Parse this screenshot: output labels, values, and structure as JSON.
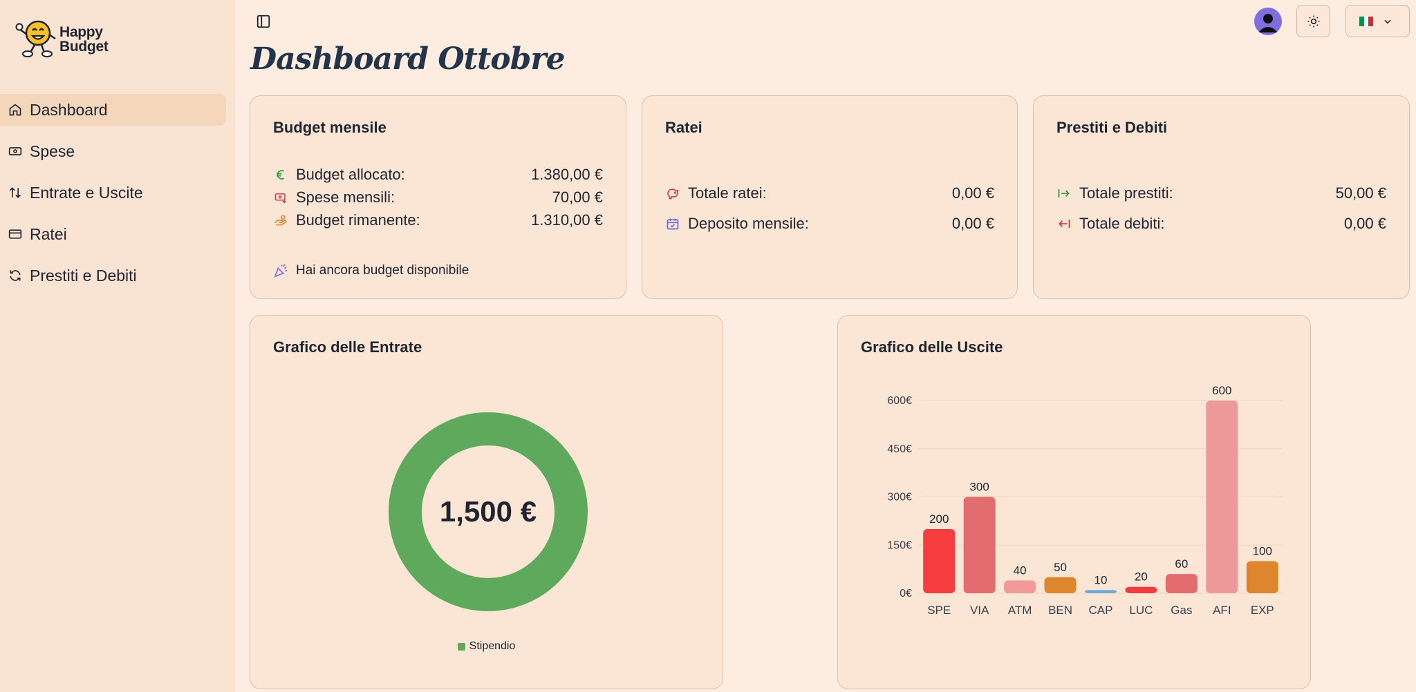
{
  "app": {
    "logo_line1": "Happy",
    "logo_line2": "Budget"
  },
  "sidebar": {
    "items": [
      {
        "label": "Dashboard",
        "icon": "home-icon",
        "active": true
      },
      {
        "label": "Spese",
        "icon": "banknote-icon"
      },
      {
        "label": "Entrate e Uscite",
        "icon": "arrows-up-down-icon"
      },
      {
        "label": "Ratei",
        "icon": "credit-card-icon"
      },
      {
        "label": "Prestiti e Debiti",
        "icon": "refresh-icon"
      }
    ]
  },
  "header": {
    "title": "Dashboard Ottobre",
    "language": "it",
    "flag_colors": [
      "#009246",
      "#ffffff",
      "#ce2b37"
    ]
  },
  "budget": {
    "title": "Budget mensile",
    "allocated_label": "Budget allocato:",
    "allocated_value": "1.380,00 €",
    "spent_label": "Spese mensili:",
    "spent_value": "70,00 €",
    "remaining_label": "Budget rimanente:",
    "remaining_value": "1.310,00 €",
    "note": "Hai ancora budget disponibile"
  },
  "ratei": {
    "title": "Ratei",
    "total_label": "Totale ratei:",
    "total_value": "0,00 €",
    "deposit_label": "Deposito mensile:",
    "deposit_value": "0,00 €"
  },
  "loans": {
    "title": "Prestiti e Debiti",
    "loans_label": "Totale prestiti:",
    "loans_value": "50,00 €",
    "debts_label": "Totale debiti:",
    "debts_value": "0,00 €"
  },
  "income_chart": {
    "title": "Grafico delle Entrate",
    "center_label": "1,500 €",
    "legend": "Stipendio",
    "color": "#5ea95c"
  },
  "expense_chart": {
    "title": "Grafico delle Uscite",
    "y_ticks": [
      "0€",
      "150€",
      "300€",
      "450€",
      "600€"
    ]
  },
  "chart_data": [
    {
      "type": "pie",
      "title": "Grafico delle Entrate",
      "categories": [
        "Stipendio"
      ],
      "values": [
        1500
      ],
      "colors": [
        "#5ea95c"
      ]
    },
    {
      "type": "bar",
      "title": "Grafico delle Uscite",
      "categories": [
        "SPE",
        "VIA",
        "ATM",
        "BEN",
        "CAP",
        "LUC",
        "Gas",
        "AFI",
        "EXP"
      ],
      "values": [
        200,
        300,
        40,
        50,
        10,
        20,
        60,
        600,
        100
      ],
      "colors": [
        "#f53d3f",
        "#e36c6f",
        "#f29a99",
        "#dd862d",
        "#6ea8d8",
        "#f03c3e",
        "#e36c6f",
        "#ee9999",
        "#dd862d"
      ],
      "ylim": [
        0,
        600
      ],
      "y_ticks": [
        0,
        150,
        300,
        450,
        600
      ],
      "grid": true
    }
  ]
}
